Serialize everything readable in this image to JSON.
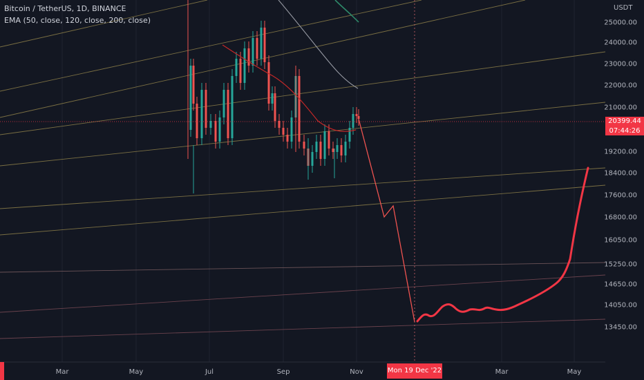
{
  "header": {
    "symbol_line": "Bitcoin / TetherUS, 1D, BINANCE",
    "indicator_line": "EMA (50, close, 120, close, 200, close)"
  },
  "price_axis": {
    "currency": "USDT",
    "current_price": "20399.44",
    "countdown": "07:44:26"
  },
  "time_axis": {
    "crosshair_label": "Mon 19 Dec '22"
  },
  "colors": {
    "background": "#131722",
    "up": "#26a69a",
    "down": "#ef5350",
    "accent": "#f23645",
    "fan_lines": "#8d7f49",
    "ema50": "#d32f2f",
    "ema120": "#b2b5be",
    "ema200": "#2e8a6a"
  },
  "chart_data": {
    "type": "candlestick",
    "title": "Bitcoin / TetherUS, 1D, BINANCE",
    "y_axis": {
      "unit": "USDT",
      "tick_labels": [
        "25000.00",
        "24000.00",
        "23000.00",
        "22000.00",
        "21000.00",
        "19200.00",
        "18400.00",
        "17600.00",
        "16800.00",
        "16050.00",
        "15250.00",
        "14650.00",
        "14050.00",
        "13450.00"
      ]
    },
    "x_axis": {
      "tick_labels": [
        "Mar",
        "May",
        "Jul",
        "Sep",
        "Nov",
        "Mar",
        "May"
      ],
      "crosshair_label": "Mon 19 Dec '22"
    },
    "last_price": 20399.44,
    "price_range_approx": [
      17600,
      25200
    ],
    "indicators": [
      "EMA 50",
      "EMA 120",
      "EMA 200"
    ],
    "projection": {
      "description_points": [
        [
          "Nov",
          19700
        ],
        [
          "late Nov",
          16900
        ],
        [
          "Dec",
          17250
        ],
        [
          "Mon 19 Dec '22",
          13500
        ],
        [
          "Jan",
          14000
        ],
        [
          "Feb",
          13950
        ],
        [
          "Mar",
          14050
        ],
        [
          "Apr",
          14700
        ],
        [
          "May",
          18600
        ]
      ]
    }
  }
}
